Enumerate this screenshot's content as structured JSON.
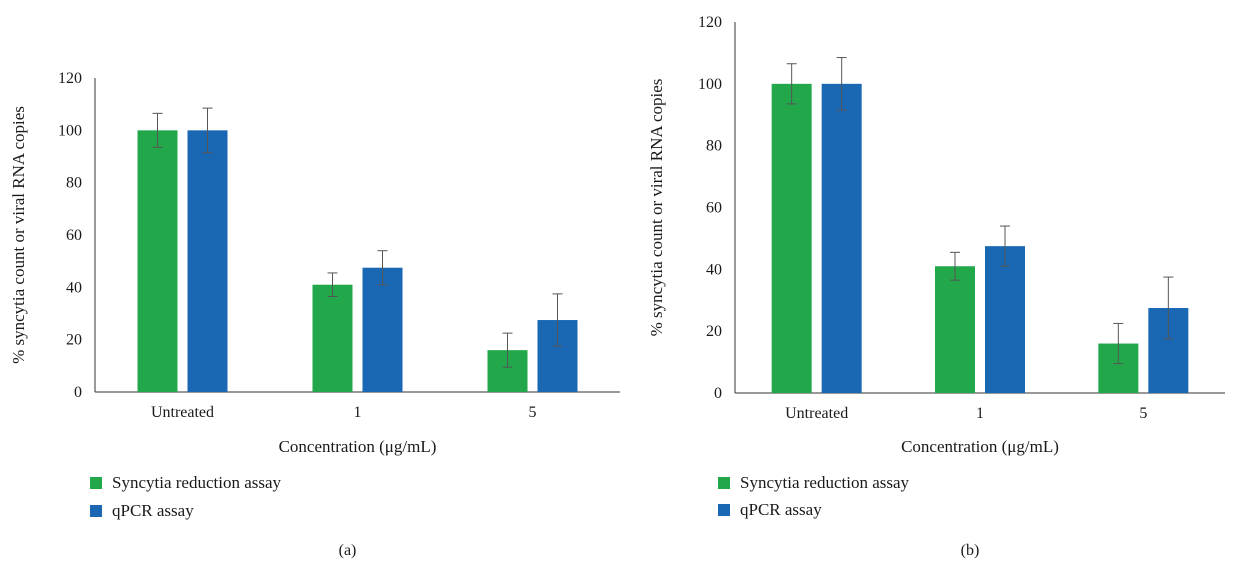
{
  "chart_data": [
    {
      "type": "bar",
      "panel_label": "(a)",
      "categories": [
        "Untreated",
        "1",
        "5"
      ],
      "series": [
        {
          "name": "Syncytia reduction assay",
          "color": "#22a84a",
          "values": [
            100,
            41,
            16
          ],
          "errors": [
            6.5,
            4.5,
            6.5
          ]
        },
        {
          "name": "qPCR assay",
          "color": "#1a68b4",
          "values": [
            100,
            47.5,
            27.5
          ],
          "errors": [
            8.5,
            6.5,
            10
          ]
        }
      ],
      "xlabel": "Concentration (μg/mL)",
      "ylabel": "% syncytia count or viral RNA copies",
      "ylim": [
        0,
        120
      ],
      "yticks": [
        0,
        20,
        40,
        60,
        80,
        100,
        120
      ],
      "grid": false,
      "legend_position": "bottom-left"
    },
    {
      "type": "bar",
      "panel_label": "(b)",
      "categories": [
        "Untreated",
        "1",
        "5"
      ],
      "series": [
        {
          "name": "Syncytia reduction assay",
          "color": "#22a84a",
          "values": [
            100,
            41,
            16
          ],
          "errors": [
            6.5,
            4.5,
            6.5
          ]
        },
        {
          "name": "qPCR assay",
          "color": "#1a68b4",
          "values": [
            100,
            47.5,
            27.5
          ],
          "errors": [
            8.5,
            6.5,
            10
          ]
        }
      ],
      "xlabel": "Concentration (μg/mL)",
      "ylabel": "% syncytia count or viral RNA copies",
      "ylim": [
        0,
        120
      ],
      "yticks": [
        0,
        20,
        40,
        60,
        80,
        100,
        120
      ],
      "grid": false,
      "legend_position": "bottom-left"
    }
  ]
}
